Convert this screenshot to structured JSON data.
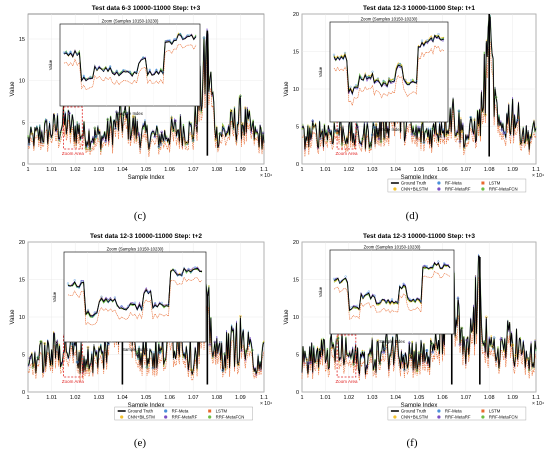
{
  "figure": {
    "panels": [
      {
        "id": "c",
        "title": "Test data 6-3 10000-11000 Step: t+3",
        "zoom_title": "Zoom (Samples 10150-10230)",
        "caption": "(c)",
        "yticks": [
          "0",
          "5",
          "10",
          "15"
        ],
        "xticks": [
          "1",
          "1.01",
          "1.02",
          "1.03",
          "1.04",
          "1.05",
          "1.06",
          "1.07",
          "1.08",
          "1.09",
          "1.1"
        ],
        "legend": false
      },
      {
        "id": "d",
        "title": "Test data 12-3 10000-11000 Step: t+1",
        "zoom_title": "Zoom (Samples 10150-10230)",
        "caption": "(d)",
        "yticks": [
          "0",
          "5",
          "10",
          "15",
          "20"
        ],
        "xticks": [
          "1",
          "1.01",
          "1.02",
          "1.03",
          "1.04",
          "1.05",
          "1.06",
          "1.07",
          "1.08",
          "1.09",
          "1.1"
        ],
        "legend": true
      },
      {
        "id": "e",
        "title": "Test data 12-3 10000-11000 Step: t+2",
        "zoom_title": "Zoom (Samples 10150-10230)",
        "caption": "(e)",
        "yticks": [
          "0",
          "5",
          "10",
          "15",
          "20"
        ],
        "xticks": [
          "1",
          "1.01",
          "1.02",
          "1.03",
          "1.04",
          "1.05",
          "1.06",
          "1.07",
          "1.08",
          "1.09",
          "1.1"
        ],
        "legend": true
      },
      {
        "id": "f",
        "title": "Test data 12-3 10000-11000 Step: t+3",
        "zoom_title": "Zoom (Samples 10150-10230)",
        "caption": "(f)",
        "yticks": [
          "0",
          "5",
          "10",
          "15",
          "20"
        ],
        "xticks": [
          "1",
          "1.01",
          "1.02",
          "1.03",
          "1.04",
          "1.05",
          "1.06",
          "1.07",
          "1.08",
          "1.09",
          "1.1"
        ],
        "legend": true
      }
    ],
    "axis": {
      "xlabel": "Sample Index",
      "ylabel": "Value",
      "x_exponent": "× 10⁴"
    },
    "zoom_axis": {
      "xlabel": "Sample Index",
      "ylabel": "Value"
    },
    "zoom_area_label": "Zoom Area",
    "legend_entries": [
      {
        "name": "Ground Truth",
        "color": "#000000",
        "style": "line"
      },
      {
        "name": "RF-Meta",
        "color": "#4a90d9",
        "style": "circle"
      },
      {
        "name": "LSTM",
        "color": "#e8682d",
        "style": "square"
      },
      {
        "name": "CNN+BiLSTM",
        "color": "#f2c12e",
        "style": "circle"
      },
      {
        "name": "RRF-MetaRF",
        "color": "#7b4fc4",
        "style": "circle"
      },
      {
        "name": "RRF-MetaFCN",
        "color": "#6cbd45",
        "style": "circle"
      }
    ]
  },
  "chart_data": [
    {
      "type": "line",
      "title": "Test data 6-3 10000-11000 Step: t+3",
      "xlabel": "Sample Index",
      "ylabel": "Value",
      "xlim": [
        10000,
        11000
      ],
      "ylim": [
        0,
        18
      ],
      "series": [
        {
          "name": "Ground Truth",
          "x": [
            10000,
            10080,
            10160,
            10240,
            10320,
            10400,
            10480,
            10560,
            10640,
            10700,
            10760,
            10800,
            10840,
            10900,
            10960,
            11000
          ],
          "values": [
            2,
            3.5,
            5,
            3,
            2.5,
            6,
            3,
            2.5,
            4,
            3.5,
            16,
            3,
            3.5,
            6,
            3,
            2.5
          ]
        },
        {
          "name": "LSTM",
          "x": [
            10000,
            10080,
            10160,
            10240,
            10320,
            10400,
            10480,
            10560,
            10640,
            10700,
            10760,
            10800,
            10840,
            10900,
            10960,
            11000
          ],
          "values": [
            1.5,
            2.8,
            3.6,
            2.2,
            2,
            4.5,
            2.4,
            2,
            3,
            2.8,
            5,
            2.5,
            2.8,
            4.5,
            2.4,
            2
          ]
        }
      ]
    },
    {
      "type": "line",
      "title": "Test data 12-3 10000-11000 Step: t+1",
      "xlabel": "Sample Index",
      "ylabel": "Value",
      "xlim": [
        10000,
        11000
      ],
      "ylim": [
        0,
        20
      ],
      "series": [
        {
          "name": "Ground Truth",
          "x": [
            10000,
            10080,
            10160,
            10240,
            10320,
            10400,
            10480,
            10560,
            10640,
            10700,
            10760,
            10800,
            10840,
            10900,
            10960,
            11000
          ],
          "values": [
            3,
            4,
            4.5,
            3,
            4,
            9,
            3.5,
            4,
            8,
            3,
            6,
            20,
            4,
            8,
            3,
            4
          ]
        },
        {
          "name": "LSTM",
          "x": [
            10000,
            10080,
            10160,
            10240,
            10320,
            10400,
            10480,
            10560,
            10640,
            10700,
            10760,
            10800,
            10840,
            10900,
            10960,
            11000
          ],
          "values": [
            2.5,
            3.4,
            3.8,
            2.6,
            3.4,
            7,
            3,
            3.4,
            6.5,
            2.6,
            5,
            11,
            3.4,
            6.5,
            2.6,
            3.4
          ]
        }
      ]
    },
    {
      "type": "line",
      "title": "Test data 12-3 10000-11000 Step: t+2",
      "xlabel": "Sample Index",
      "ylabel": "Value",
      "xlim": [
        10000,
        11000
      ],
      "ylim": [
        0,
        20
      ],
      "series": [
        {
          "name": "Ground Truth",
          "x": [
            10000,
            10080,
            10160,
            10240,
            10320,
            10400,
            10480,
            10560,
            10640,
            10700,
            10760,
            10800,
            10840,
            10900,
            10960,
            11000
          ],
          "values": [
            4,
            5,
            7,
            4,
            5,
            18,
            6,
            5,
            10,
            4,
            13,
            5,
            6,
            8,
            4,
            5
          ]
        },
        {
          "name": "LSTM",
          "x": [
            10000,
            10080,
            10160,
            10240,
            10320,
            10400,
            10480,
            10560,
            10640,
            10700,
            10760,
            10800,
            10840,
            10900,
            10960,
            11000
          ],
          "values": [
            3.4,
            4.2,
            5.5,
            3.4,
            4.2,
            9,
            5,
            4.2,
            8,
            3.4,
            11,
            4.2,
            5,
            6.5,
            3.4,
            4.2
          ]
        }
      ]
    },
    {
      "type": "line",
      "title": "Test data 12-3 10000-11000 Step: t+3",
      "xlabel": "Sample Index",
      "ylabel": "Value",
      "xlim": [
        10000,
        11000
      ],
      "ylim": [
        0,
        20
      ],
      "series": [
        {
          "name": "Ground Truth",
          "x": [
            10000,
            10080,
            10160,
            10240,
            10320,
            10400,
            10480,
            10560,
            10640,
            10700,
            10760,
            10800,
            10840,
            10900,
            10960,
            11000
          ],
          "values": [
            4,
            5,
            6,
            4,
            5,
            7,
            5,
            5,
            16,
            4,
            18,
            5,
            6,
            8,
            4,
            5
          ]
        },
        {
          "name": "LSTM",
          "x": [
            10000,
            10080,
            10160,
            10240,
            10320,
            10400,
            10480,
            10560,
            10640,
            10700,
            10760,
            10800,
            10840,
            10900,
            10960,
            11000
          ],
          "values": [
            3.4,
            4.2,
            5,
            3.4,
            4.2,
            6,
            4.2,
            4.2,
            11,
            3.4,
            12,
            4.2,
            5,
            6.5,
            3.4,
            4.2
          ]
        }
      ]
    }
  ]
}
